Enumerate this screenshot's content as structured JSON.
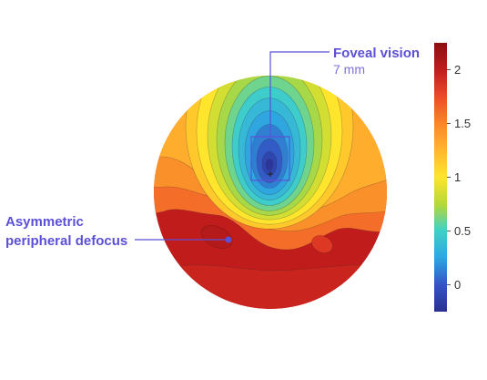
{
  "chart_data": {
    "type": "heatmap",
    "colorbar": {
      "ticks": [
        0,
        0.5,
        1,
        1.5,
        2
      ],
      "tick_labels": [
        "0",
        "0.5",
        "1",
        "1.5",
        "2"
      ],
      "range": [
        -0.25,
        2.25
      ],
      "colors": [
        "#2b2f8f",
        "#3355c4",
        "#2fa6e0",
        "#3fd0c9",
        "#b5d936",
        "#ffe52c",
        "#ffb72c",
        "#f9862a",
        "#ee4a28",
        "#c01c1c",
        "#8a1010"
      ]
    },
    "annotations": [
      {
        "title": "Foveal vision",
        "subtitle": "7 mm"
      },
      {
        "title_lines": [
          "Asymmetric",
          "peripheral defocus"
        ]
      }
    ],
    "map": {
      "minimum_value": -0.25,
      "edge_value": 2.0
    }
  },
  "colors": {
    "annotation": "#5b50d6",
    "crosshair": "#222222"
  }
}
